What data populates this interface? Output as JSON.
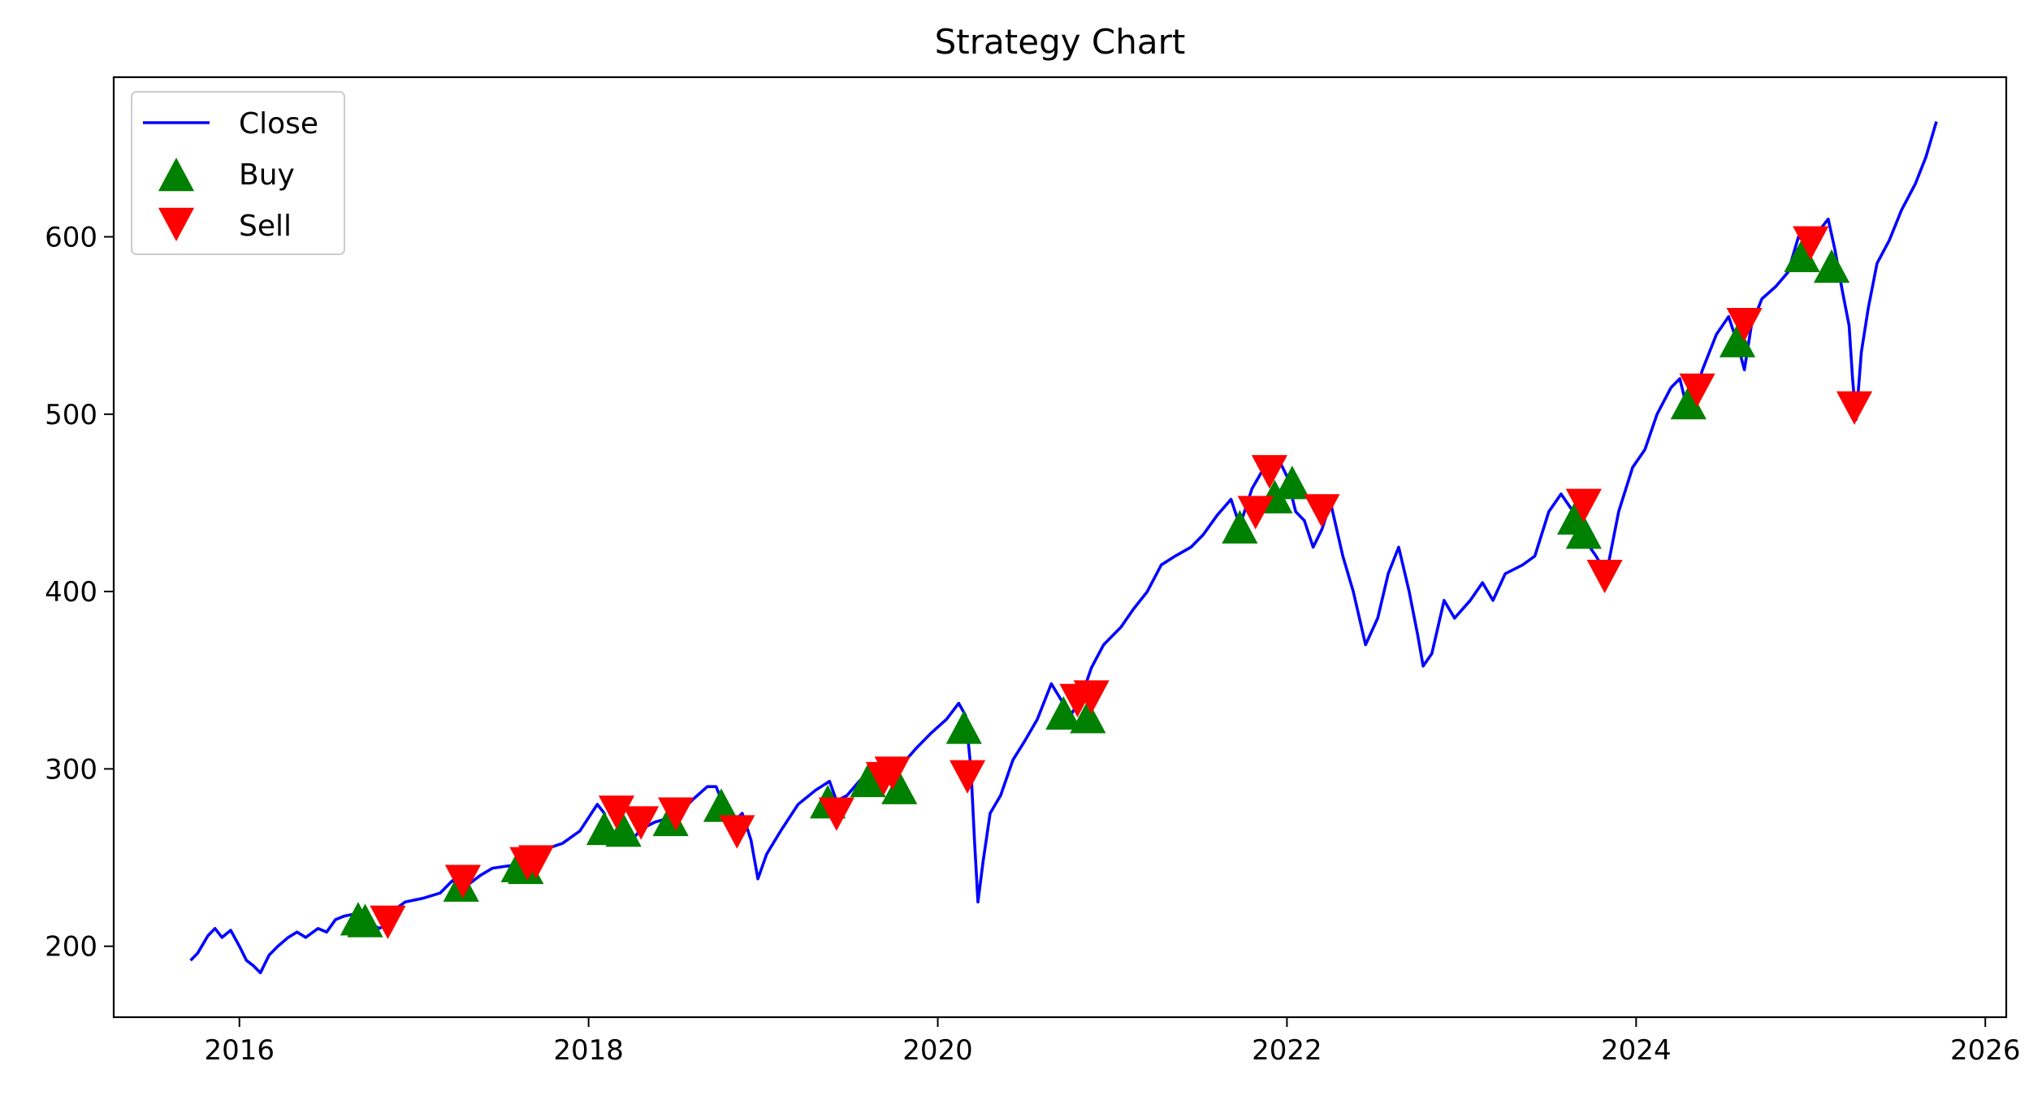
{
  "chart_data": {
    "type": "line",
    "title": "Strategy Chart",
    "xlabel": "",
    "ylabel": "",
    "xlim": [
      2015.28,
      2026.12
    ],
    "ylim": [
      160,
      690
    ],
    "x_ticks": [
      2016,
      2018,
      2020,
      2022,
      2024,
      2026
    ],
    "x_tick_labels": [
      "2016",
      "2018",
      "2020",
      "2022",
      "2024",
      "2026"
    ],
    "y_ticks": [
      200,
      300,
      400,
      500,
      600
    ],
    "y_tick_labels": [
      "200",
      "300",
      "400",
      "500",
      "600"
    ],
    "grid": false,
    "legend": {
      "placement": "top-left",
      "entries": [
        "Close",
        "Buy",
        "Sell"
      ]
    },
    "colors": {
      "close": "#0000ff",
      "buy": "#008000",
      "sell": "#ff0000"
    },
    "series": [
      {
        "name": "Close",
        "marker": "line",
        "points": [
          [
            2015.72,
            192
          ],
          [
            2015.76,
            196
          ],
          [
            2015.82,
            206
          ],
          [
            2015.86,
            210
          ],
          [
            2015.9,
            205
          ],
          [
            2015.95,
            209
          ],
          [
            2016.0,
            200
          ],
          [
            2016.04,
            192
          ],
          [
            2016.08,
            189
          ],
          [
            2016.12,
            185
          ],
          [
            2016.17,
            195
          ],
          [
            2016.22,
            200
          ],
          [
            2016.28,
            205
          ],
          [
            2016.33,
            208
          ],
          [
            2016.38,
            205
          ],
          [
            2016.45,
            210
          ],
          [
            2016.5,
            208
          ],
          [
            2016.55,
            215
          ],
          [
            2016.6,
            217
          ],
          [
            2016.65,
            218
          ],
          [
            2016.7,
            216
          ],
          [
            2016.75,
            213
          ],
          [
            2016.8,
            210
          ],
          [
            2016.84,
            212
          ],
          [
            2016.88,
            220
          ],
          [
            2016.95,
            225
          ],
          [
            2017.05,
            227
          ],
          [
            2017.15,
            230
          ],
          [
            2017.22,
            237
          ],
          [
            2017.3,
            234
          ],
          [
            2017.38,
            240
          ],
          [
            2017.45,
            244
          ],
          [
            2017.52,
            245
          ],
          [
            2017.6,
            246
          ],
          [
            2017.68,
            250
          ],
          [
            2017.76,
            255
          ],
          [
            2017.85,
            258
          ],
          [
            2017.95,
            265
          ],
          [
            2018.05,
            280
          ],
          [
            2018.09,
            275
          ],
          [
            2018.13,
            260
          ],
          [
            2018.18,
            265
          ],
          [
            2018.25,
            260
          ],
          [
            2018.3,
            266
          ],
          [
            2018.38,
            270
          ],
          [
            2018.45,
            272
          ],
          [
            2018.52,
            275
          ],
          [
            2018.6,
            283
          ],
          [
            2018.68,
            290
          ],
          [
            2018.73,
            290
          ],
          [
            2018.78,
            278
          ],
          [
            2018.83,
            270
          ],
          [
            2018.88,
            275
          ],
          [
            2018.93,
            260
          ],
          [
            2018.97,
            238
          ],
          [
            2019.02,
            252
          ],
          [
            2019.1,
            265
          ],
          [
            2019.2,
            280
          ],
          [
            2019.3,
            288
          ],
          [
            2019.38,
            293
          ],
          [
            2019.42,
            282
          ],
          [
            2019.48,
            285
          ],
          [
            2019.55,
            293
          ],
          [
            2019.6,
            298
          ],
          [
            2019.65,
            288
          ],
          [
            2019.7,
            292
          ],
          [
            2019.75,
            296
          ],
          [
            2019.8,
            303
          ],
          [
            2019.88,
            312
          ],
          [
            2019.96,
            320
          ],
          [
            2020.05,
            328
          ],
          [
            2020.12,
            337
          ],
          [
            2020.16,
            330
          ],
          [
            2020.19,
            300
          ],
          [
            2020.21,
            260
          ],
          [
            2020.23,
            225
          ],
          [
            2020.26,
            248
          ],
          [
            2020.3,
            275
          ],
          [
            2020.36,
            285
          ],
          [
            2020.43,
            305
          ],
          [
            2020.5,
            316
          ],
          [
            2020.57,
            328
          ],
          [
            2020.65,
            348
          ],
          [
            2020.7,
            340
          ],
          [
            2020.76,
            330
          ],
          [
            2020.82,
            340
          ],
          [
            2020.88,
            357
          ],
          [
            2020.95,
            370
          ],
          [
            2021.05,
            380
          ],
          [
            2021.12,
            390
          ],
          [
            2021.2,
            400
          ],
          [
            2021.28,
            415
          ],
          [
            2021.36,
            420
          ],
          [
            2021.45,
            425
          ],
          [
            2021.52,
            432
          ],
          [
            2021.6,
            443
          ],
          [
            2021.68,
            452
          ],
          [
            2021.73,
            437
          ],
          [
            2021.8,
            458
          ],
          [
            2021.87,
            470
          ],
          [
            2021.95,
            475
          ],
          [
            2022.0,
            465
          ],
          [
            2022.05,
            445
          ],
          [
            2022.1,
            440
          ],
          [
            2022.15,
            425
          ],
          [
            2022.2,
            435
          ],
          [
            2022.25,
            450
          ],
          [
            2022.32,
            420
          ],
          [
            2022.38,
            400
          ],
          [
            2022.45,
            370
          ],
          [
            2022.52,
            385
          ],
          [
            2022.58,
            410
          ],
          [
            2022.64,
            425
          ],
          [
            2022.7,
            400
          ],
          [
            2022.75,
            375
          ],
          [
            2022.78,
            358
          ],
          [
            2022.83,
            365
          ],
          [
            2022.9,
            395
          ],
          [
            2022.96,
            385
          ],
          [
            2023.05,
            395
          ],
          [
            2023.12,
            405
          ],
          [
            2023.18,
            395
          ],
          [
            2023.25,
            410
          ],
          [
            2023.35,
            415
          ],
          [
            2023.42,
            420
          ],
          [
            2023.5,
            445
          ],
          [
            2023.57,
            455
          ],
          [
            2023.64,
            445
          ],
          [
            2023.7,
            430
          ],
          [
            2023.77,
            420
          ],
          [
            2023.83,
            410
          ],
          [
            2023.9,
            445
          ],
          [
            2023.98,
            470
          ],
          [
            2024.05,
            480
          ],
          [
            2024.12,
            500
          ],
          [
            2024.2,
            515
          ],
          [
            2024.25,
            520
          ],
          [
            2024.3,
            500
          ],
          [
            2024.38,
            525
          ],
          [
            2024.46,
            545
          ],
          [
            2024.53,
            555
          ],
          [
            2024.58,
            540
          ],
          [
            2024.62,
            525
          ],
          [
            2024.66,
            550
          ],
          [
            2024.72,
            565
          ],
          [
            2024.8,
            572
          ],
          [
            2024.87,
            580
          ],
          [
            2024.93,
            600
          ],
          [
            2025.0,
            595
          ],
          [
            2025.06,
            605
          ],
          [
            2025.1,
            610
          ],
          [
            2025.14,
            592
          ],
          [
            2025.18,
            570
          ],
          [
            2025.22,
            550
          ],
          [
            2025.24,
            520
          ],
          [
            2025.26,
            497
          ],
          [
            2025.29,
            535
          ],
          [
            2025.33,
            560
          ],
          [
            2025.38,
            585
          ],
          [
            2025.45,
            598
          ],
          [
            2025.52,
            615
          ],
          [
            2025.6,
            630
          ],
          [
            2025.66,
            645
          ],
          [
            2025.72,
            665
          ]
        ]
      },
      {
        "name": "Buy",
        "marker": "triangle-up",
        "points": [
          [
            2016.68,
            214
          ],
          [
            2016.72,
            213
          ],
          [
            2017.27,
            233
          ],
          [
            2017.6,
            244
          ],
          [
            2017.64,
            243
          ],
          [
            2018.09,
            265
          ],
          [
            2018.2,
            264
          ],
          [
            2018.47,
            270
          ],
          [
            2018.76,
            278
          ],
          [
            2019.37,
            280
          ],
          [
            2019.6,
            292
          ],
          [
            2019.78,
            288
          ],
          [
            2020.15,
            322
          ],
          [
            2020.72,
            330
          ],
          [
            2020.86,
            328
          ],
          [
            2021.73,
            435
          ],
          [
            2021.93,
            452
          ],
          [
            2022.03,
            460
          ],
          [
            2023.65,
            440
          ],
          [
            2023.7,
            432
          ],
          [
            2024.3,
            505
          ],
          [
            2024.58,
            540
          ],
          [
            2024.95,
            588
          ],
          [
            2025.12,
            582
          ]
        ]
      },
      {
        "name": "Sell",
        "marker": "triangle-down",
        "points": [
          [
            2016.85,
            215
          ],
          [
            2017.28,
            238
          ],
          [
            2017.65,
            248
          ],
          [
            2017.7,
            249
          ],
          [
            2018.16,
            277
          ],
          [
            2018.3,
            271
          ],
          [
            2018.5,
            276
          ],
          [
            2018.85,
            266
          ],
          [
            2019.42,
            276
          ],
          [
            2019.69,
            296
          ],
          [
            2019.74,
            299
          ],
          [
            2020.17,
            297
          ],
          [
            2020.8,
            340
          ],
          [
            2020.88,
            342
          ],
          [
            2021.82,
            446
          ],
          [
            2021.9,
            469
          ],
          [
            2022.2,
            447
          ],
          [
            2023.7,
            450
          ],
          [
            2023.82,
            410
          ],
          [
            2024.35,
            515
          ],
          [
            2024.62,
            552
          ],
          [
            2025.0,
            598
          ],
          [
            2025.25,
            505
          ]
        ]
      }
    ]
  }
}
